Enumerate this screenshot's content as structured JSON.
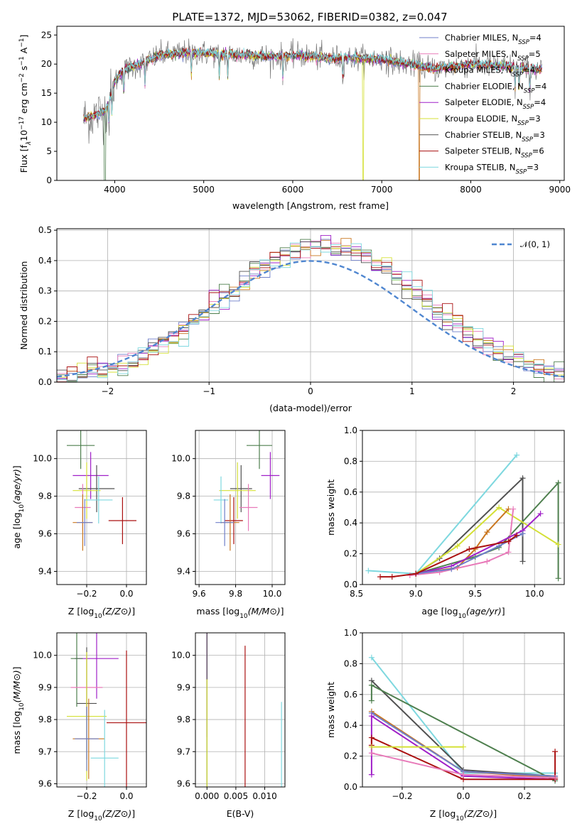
{
  "colors": {
    "Chabrier MILES": "#6f7fc9",
    "Salpeter MILES": "#e87ab9",
    "Kroupa MILES": "#c9761f",
    "Chabrier ELODIE": "#4e7f4e",
    "Salpeter ELODIE": "#a020c8",
    "Kroupa ELODIE": "#d4e035",
    "Chabrier STELIB": "#505050",
    "Salpeter STELIB": "#aa1010",
    "Kroupa STELIB": "#7ed8df"
  },
  "chart_data": [
    {
      "id": "spectrum",
      "type": "line",
      "title": "PLATE=1372, MJD=53062, FIBERID=0382, z=0.047",
      "xlabel": "wavelength [Angstrom, rest frame]",
      "ylabel_parts": [
        "Flux [f",
        "λ",
        "10",
        "−17",
        " erg cm",
        "−2",
        " s",
        "−1",
        " A",
        "−1",
        "]"
      ],
      "xlim": [
        3350,
        9050
      ],
      "ylim": [
        0,
        26.5
      ],
      "xticks": [
        "4000",
        "5000",
        "6000",
        "7000",
        "8000",
        "9000"
      ],
      "yticks": [
        "0",
        "5",
        "10",
        "15",
        "20",
        "25"
      ],
      "legend_position": "right",
      "legend": [
        {
          "base": "Chabrier MILES, N",
          "sub": "SSP",
          "tail": "=4"
        },
        {
          "base": "Salpeter MILES, N",
          "sub": "SSP",
          "tail": "=5"
        },
        {
          "base": "Kroupa MILES, N",
          "sub": "SSP",
          "tail": "=4"
        },
        {
          "base": "Chabrier ELODIE, N",
          "sub": "SSP",
          "tail": "=4"
        },
        {
          "base": "Salpeter ELODIE, N",
          "sub": "SSP",
          "tail": "=4"
        },
        {
          "base": "Kroupa ELODIE, N",
          "sub": "SSP",
          "tail": "=3"
        },
        {
          "base": "Chabrier STELIB, N",
          "sub": "SSP",
          "tail": "=3"
        },
        {
          "base": "Salpeter STELIB, N",
          "sub": "SSP",
          "tail": "=6"
        },
        {
          "base": "Kroupa STELIB, N",
          "sub": "SSP",
          "tail": "=3"
        }
      ],
      "continuum_knots": {
        "x": [
          3650,
          3900,
          3950,
          4000,
          4100,
          4300,
          4500,
          4800,
          5100,
          5500,
          5800,
          6100,
          6400,
          6700,
          7000,
          7300,
          7600,
          8000,
          8500,
          8800
        ],
        "y": [
          10.5,
          12.0,
          14.5,
          17.0,
          19.0,
          20.0,
          21.5,
          22.0,
          21.8,
          21.5,
          21.3,
          21.5,
          21.0,
          21.0,
          20.8,
          20.0,
          19.2,
          20.0,
          19.5,
          19.0
        ]
      },
      "model_drops": [
        {
          "model": "Kroupa ELODIE",
          "x": 6790
        },
        {
          "model": "Kroupa MILES",
          "x": 7420
        },
        {
          "model": "Chabrier ELODIE",
          "x": 3890
        }
      ]
    },
    {
      "id": "residuals",
      "type": "histogram",
      "xlabel": "(data-model)/error",
      "ylabel": "Normed distribution",
      "xlim": [
        -2.5,
        2.5
      ],
      "ylim": [
        0,
        0.505
      ],
      "xticks": [
        "−2",
        "−1",
        "0",
        "1",
        "2"
      ],
      "yticks": [
        "0.0",
        "0.1",
        "0.2",
        "0.3",
        "0.4",
        "0.5"
      ],
      "grid": true,
      "legend_position": "top-right",
      "legend": [
        "𝒩(0, 1)"
      ],
      "reference_curve": "normal(0,1)",
      "bin_width": 0.1
    },
    {
      "id": "age_vs_Z",
      "type": "errorbar",
      "xlabel": "Z [log10(Z/Z⊙)]",
      "ylabel": "age  [log10(age/yr)]",
      "xlim": [
        -0.35,
        0.1
      ],
      "ylim": [
        9.33,
        10.15
      ],
      "xticks": [
        "−0.2",
        "0.0"
      ],
      "yticks": [
        "9.4",
        "9.6",
        "9.8",
        "10.0"
      ],
      "grid": true,
      "points": [
        {
          "model": "Chabrier ELODIE",
          "x": -0.23,
          "xerr": 0.07,
          "y": 10.07,
          "yerr": 0.05
        },
        {
          "model": "Salpeter ELODIE",
          "x": -0.18,
          "xerr": 0.09,
          "y": 9.91,
          "yerr": 0.05
        },
        {
          "model": "Chabrier STELIB",
          "x": -0.15,
          "xerr": 0.09,
          "y": 9.84,
          "yerr": 0.05
        },
        {
          "model": "Kroupa ELODIE",
          "x": -0.2,
          "xerr": 0.07,
          "y": 9.83,
          "yerr": 0.06
        },
        {
          "model": "Kroupa STELIB",
          "x": -0.14,
          "xerr": 0.07,
          "y": 9.78,
          "yerr": 0.05
        },
        {
          "model": "Salpeter MILES",
          "x": -0.22,
          "xerr": 0.04,
          "y": 9.74,
          "yerr": 0.05
        },
        {
          "model": "Salpeter STELIB",
          "x": -0.02,
          "xerr": 0.07,
          "y": 9.67,
          "yerr": 0.05
        },
        {
          "model": "Kroupa MILES",
          "x": -0.22,
          "xerr": 0.05,
          "y": 9.66,
          "yerr": 0.06
        },
        {
          "model": "Chabrier MILES",
          "x": -0.21,
          "xerr": 0.04,
          "y": 9.66,
          "yerr": 0.05
        }
      ]
    },
    {
      "id": "age_vs_mass",
      "type": "errorbar",
      "xlabel": "mass [log10(M/M⊙)]",
      "ylabel": "",
      "xlim": [
        9.58,
        10.07
      ],
      "ylim": [
        9.33,
        10.15
      ],
      "xticks": [
        "9.6",
        "9.8",
        "10.0"
      ],
      "yticks": [
        "9.4",
        "9.6",
        "9.8",
        "10.0"
      ],
      "grid": true,
      "points": [
        {
          "model": "Chabrier ELODIE",
          "x": 9.93,
          "xerr": 0.07,
          "y": 10.07,
          "yerr": 0.05
        },
        {
          "model": "Salpeter ELODIE",
          "x": 9.99,
          "xerr": 0.05,
          "y": 9.91,
          "yerr": 0.05
        },
        {
          "model": "Chabrier STELIB",
          "x": 9.83,
          "xerr": 0.06,
          "y": 9.84,
          "yerr": 0.05
        },
        {
          "model": "Kroupa ELODIE",
          "x": 9.81,
          "xerr": 0.1,
          "y": 9.83,
          "yerr": 0.06
        },
        {
          "model": "Kroupa STELIB",
          "x": 9.72,
          "xerr": 0.04,
          "y": 9.78,
          "yerr": 0.05
        },
        {
          "model": "Salpeter MILES",
          "x": 9.87,
          "xerr": 0.05,
          "y": 9.74,
          "yerr": 0.05
        },
        {
          "model": "Salpeter STELIB",
          "x": 9.79,
          "xerr": 0.05,
          "y": 9.67,
          "yerr": 0.05
        },
        {
          "model": "Kroupa MILES",
          "x": 9.77,
          "xerr": 0.05,
          "y": 9.66,
          "yerr": 0.06
        },
        {
          "model": "Chabrier MILES",
          "x": 9.74,
          "xerr": 0.05,
          "y": 9.66,
          "yerr": 0.05
        }
      ]
    },
    {
      "id": "weight_vs_age",
      "type": "line",
      "xlabel": "age  [log10(age/yr)]",
      "ylabel": "mass weight",
      "xlim": [
        8.55,
        10.25
      ],
      "ylim": [
        0,
        1.0
      ],
      "xticks": [
        "8.5",
        "9.0",
        "9.5",
        "10.0"
      ],
      "yticks": [
        "0.0",
        "0.2",
        "0.4",
        "0.6",
        "0.8",
        "1.0"
      ],
      "grid": true,
      "series": [
        {
          "model": "Kroupa STELIB",
          "x": [
            8.6,
            9.0,
            9.85
          ],
          "y": [
            0.09,
            0.07,
            0.84
          ]
        },
        {
          "model": "Chabrier STELIB",
          "x": [
            9.0,
            9.2,
            9.9,
            9.9
          ],
          "y": [
            0.07,
            0.17,
            0.69,
            0.15
          ]
        },
        {
          "model": "Chabrier ELODIE",
          "x": [
            9.0,
            9.5,
            9.7,
            10.2,
            10.2
          ],
          "y": [
            0.07,
            0.18,
            0.24,
            0.66,
            0.04
          ]
        },
        {
          "model": "Kroupa ELODIE",
          "x": [
            9.0,
            9.35,
            9.7,
            10.2
          ],
          "y": [
            0.07,
            0.25,
            0.5,
            0.26
          ]
        },
        {
          "model": "Kroupa MILES",
          "x": [
            9.0,
            9.35,
            9.5,
            9.6,
            9.78
          ],
          "y": [
            0.07,
            0.11,
            0.23,
            0.34,
            0.49
          ]
        },
        {
          "model": "Salpeter MILES",
          "x": [
            8.95,
            9.2,
            9.6,
            9.78,
            9.82
          ],
          "y": [
            0.06,
            0.08,
            0.15,
            0.21,
            0.49
          ]
        },
        {
          "model": "Salpeter ELODIE",
          "x": [
            9.0,
            9.3,
            9.9,
            10.05
          ],
          "y": [
            0.07,
            0.12,
            0.35,
            0.46
          ]
        },
        {
          "model": "Chabrier MILES",
          "x": [
            9.0,
            9.3,
            9.7,
            9.9
          ],
          "y": [
            0.07,
            0.1,
            0.25,
            0.33
          ]
        },
        {
          "model": "Salpeter STELIB",
          "x": [
            8.7,
            8.8,
            9.0,
            9.45,
            9.78,
            9.85
          ],
          "y": [
            0.05,
            0.05,
            0.07,
            0.23,
            0.28,
            0.32
          ]
        }
      ]
    },
    {
      "id": "mass_vs_Z",
      "type": "errorbar",
      "xlabel": "Z [log10(Z/Z⊙)]",
      "ylabel": "mass [log10(M/M⊙)]",
      "xlim": [
        -0.35,
        0.1
      ],
      "ylim": [
        9.59,
        10.07
      ],
      "xticks": [
        "−0.2",
        "0.0"
      ],
      "yticks": [
        "9.6",
        "9.7",
        "9.8",
        "9.9",
        "10.0"
      ],
      "grid": true,
      "points": [
        {
          "model": "Salpeter ELODIE",
          "x": -0.15,
          "xerr": 0.11,
          "y": 9.99,
          "yerr": 0.05
        },
        {
          "model": "Chabrier ELODIE",
          "x": -0.25,
          "xerr": 0.03,
          "y": 9.99,
          "yerr": 0.06
        },
        {
          "model": "Salpeter MILES",
          "x": -0.2,
          "xerr": 0.08,
          "y": 9.9,
          "yerr": 0.04
        },
        {
          "model": "Chabrier STELIB",
          "x": -0.2,
          "xerr": 0.05,
          "y": 9.85,
          "yerr": 0.07
        },
        {
          "model": "Kroupa ELODIE",
          "x": -0.2,
          "xerr": 0.1,
          "y": 9.81,
          "yerr": 0.08
        },
        {
          "model": "Salpeter STELIB",
          "x": 0.0,
          "xerr": 0.1,
          "y": 9.79,
          "yerr": 0.09
        },
        {
          "model": "Kroupa MILES",
          "x": -0.19,
          "xerr": 0.08,
          "y": 9.74,
          "yerr": 0.05
        },
        {
          "model": "Chabrier MILES",
          "x": -0.2,
          "xerr": 0.06,
          "y": 9.74,
          "yerr": 0.04
        },
        {
          "model": "Kroupa STELIB",
          "x": -0.11,
          "xerr": 0.07,
          "y": 9.68,
          "yerr": 0.06
        }
      ]
    },
    {
      "id": "mass_vs_ebv",
      "type": "errorbar",
      "xlabel": "E(B-V)",
      "ylabel": "",
      "xlim": [
        -0.002,
        0.0135
      ],
      "ylim": [
        9.59,
        10.07
      ],
      "xticks": [
        "0.000",
        "0.005",
        "0.010"
      ],
      "yticks": [
        "9.6",
        "9.7",
        "9.8",
        "9.9",
        "10.0"
      ],
      "grid": true,
      "points": [
        {
          "model": "Salpeter ELODIE",
          "x": 0.0,
          "xerr": 0,
          "y": 9.97,
          "yerr": 0.09
        },
        {
          "model": "Chabrier STELIB",
          "x": 0.0,
          "xerr": 0,
          "y": 9.81,
          "yerr": 0.11
        },
        {
          "model": "Kroupa ELODIE",
          "x": 0.0,
          "xerr": 0,
          "y": 9.7,
          "yerr": 0.09
        },
        {
          "model": "Salpeter STELIB",
          "x": 0.0066,
          "xerr": 0,
          "y": 9.78,
          "yerr": 0.1
        },
        {
          "model": "Kroupa STELIB",
          "x": 0.0129,
          "xerr": 0,
          "y": 9.68,
          "yerr": 0.07
        }
      ]
    },
    {
      "id": "weight_vs_Z",
      "type": "line",
      "xlabel": "Z [log10(Z/Z⊙)]",
      "ylabel": "mass weight",
      "xlim": [
        -0.33,
        0.33
      ],
      "ylim": [
        0,
        1.0
      ],
      "xticks": [
        "−0.2",
        "0.0",
        "0.2"
      ],
      "yticks": [
        "0.0",
        "0.2",
        "0.4",
        "0.6",
        "0.8",
        "1.0"
      ],
      "grid": true,
      "series": [
        {
          "model": "Kroupa STELIB",
          "x": [
            -0.3,
            0.0,
            0.3
          ],
          "y": [
            0.84,
            0.09,
            0.09
          ]
        },
        {
          "model": "Chabrier STELIB",
          "x": [
            -0.3,
            0.0,
            0.3
          ],
          "y": [
            0.69,
            0.11,
            0.07
          ]
        },
        {
          "model": "Chabrier ELODIE",
          "x": [
            -0.3,
            -0.3,
            0.3,
            0.3
          ],
          "y": [
            0.56,
            0.66,
            0.04,
            0.06
          ]
        },
        {
          "model": "Kroupa MILES",
          "x": [
            -0.3,
            0.0,
            0.3
          ],
          "y": [
            0.49,
            0.1,
            0.06
          ]
        },
        {
          "model": "Chabrier MILES",
          "x": [
            -0.3,
            0.0,
            0.3
          ],
          "y": [
            0.48,
            0.1,
            0.07
          ]
        },
        {
          "model": "Salpeter ELODIE",
          "x": [
            -0.3,
            -0.3,
            0.0,
            0.3
          ],
          "y": [
            0.08,
            0.46,
            0.07,
            0.05
          ]
        },
        {
          "model": "Salpeter STELIB",
          "x": [
            -0.3,
            -0.3,
            0.0,
            0.3,
            0.3
          ],
          "y": [
            0.27,
            0.32,
            0.05,
            0.05,
            0.23
          ]
        },
        {
          "model": "Kroupa ELODIE",
          "x": [
            -0.3,
            0.0
          ],
          "y": [
            0.26,
            0.26
          ]
        },
        {
          "model": "Salpeter MILES",
          "x": [
            -0.3,
            0.0,
            0.3
          ],
          "y": [
            0.22,
            0.08,
            0.06
          ]
        }
      ]
    }
  ]
}
